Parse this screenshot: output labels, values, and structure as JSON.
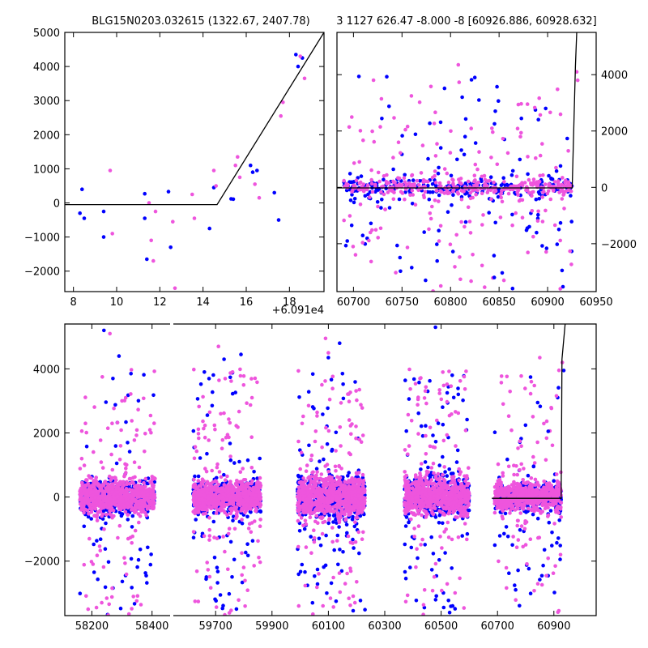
{
  "colors": {
    "blue": "#0000ff",
    "magenta": "#ee55dd",
    "model": "#000000"
  },
  "chart_data": [
    {
      "id": "zoom-left",
      "type": "scatter",
      "title": "BLG15N0203.032615 (1322.67, 2407.78)",
      "xlabel": "",
      "offset_label": "+6.091e4",
      "xlim": [
        7.6,
        19.6
      ],
      "ylim": [
        -2600,
        5000
      ],
      "xticks": [
        8,
        10,
        12,
        14,
        16,
        18
      ],
      "xtick_labels": [
        "8",
        "10",
        "12",
        "14",
        "16",
        "18"
      ],
      "yticks": [
        -2000,
        -1000,
        0,
        1000,
        2000,
        3000,
        4000,
        5000
      ],
      "ytick_labels": [
        "−2000",
        "−1000",
        "0",
        "1000",
        "2000",
        "3000",
        "4000",
        "5000"
      ],
      "series": [
        {
          "name": "blue",
          "color": "#0000ff",
          "x": [
            8.3,
            8.4,
            8.5,
            9.4,
            9.4,
            11.3,
            11.3,
            11.4,
            12.4,
            12.5,
            14.3,
            14.5,
            15.3,
            15.4,
            16.2,
            16.3,
            16.5,
            17.3,
            17.5,
            18.3,
            18.4,
            18.6
          ],
          "y": [
            -300,
            400,
            -450,
            -250,
            -1000,
            -450,
            270,
            -1650,
            330,
            -1300,
            -750,
            450,
            120,
            110,
            1100,
            900,
            950,
            300,
            -500,
            4350,
            4000,
            4250
          ]
        },
        {
          "name": "magenta",
          "color": "#ee55dd",
          "x": [
            9.7,
            9.8,
            11.5,
            11.6,
            11.7,
            11.8,
            12.6,
            12.7,
            13.5,
            13.6,
            14.5,
            14.6,
            15.5,
            15.6,
            15.7,
            16.4,
            16.6,
            17.6,
            17.7,
            18.5,
            18.7
          ],
          "y": [
            950,
            -900,
            0,
            -1100,
            -1700,
            -250,
            -550,
            -2500,
            250,
            -450,
            950,
            500,
            1100,
            1350,
            750,
            550,
            150,
            2550,
            2950,
            4300,
            3650
          ]
        }
      ],
      "model": {
        "x": [
          7.6,
          14.65,
          19.6
        ],
        "y": [
          -50,
          -50,
          5000
        ]
      }
    },
    {
      "id": "zoom-right",
      "type": "scatter",
      "title": "3 1127 626.47 -8.000 -8 [60926.886, 60928.632]",
      "xlim": [
        60683,
        60950
      ],
      "ylim": [
        -3700,
        5500
      ],
      "xticks": [
        60700,
        60750,
        60800,
        60850,
        60900,
        60950
      ],
      "xtick_labels": [
        "60700",
        "60750",
        "60800",
        "60850",
        "60900",
        "60950"
      ],
      "yticks": [
        -2000,
        0,
        2000,
        4000
      ],
      "ytick_labels": [
        "−2000",
        "0",
        "2000",
        "4000"
      ],
      "yaxis_side": "right",
      "clusters": [
        {
          "x0": 60690,
          "x1": 60926,
          "n_blue": 320,
          "n_magenta": 420,
          "core_sd": 170,
          "out_frac": 0.32
        }
      ],
      "outliers": {
        "blue": {
          "x": [
            60812,
            60825,
            60898,
            60815,
            60790,
            60760,
            60845
          ],
          "y": [
            3200,
            3900,
            2800,
            1800,
            1400,
            -2850,
            -3200
          ]
        },
        "magenta": {
          "x": [
            60808,
            60872,
            60790,
            60913,
            60855,
            60930,
            60931
          ],
          "y": [
            4350,
            1800,
            -3500,
            -3600,
            -3300,
            4100,
            3800
          ]
        }
      },
      "model": {
        "x": [
          60683,
          60925.3,
          60928.6,
          60930
        ],
        "y": [
          -20,
          -20,
          4300,
          5500
        ]
      }
    },
    {
      "id": "full-lightcurve",
      "type": "scatter",
      "title": "",
      "broken_axis": true,
      "segments": [
        {
          "xlim": [
            58110,
            58460
          ],
          "xticks": [
            58200,
            58400
          ],
          "xtick_labels": [
            "58200",
            "58400"
          ]
        },
        {
          "xlim": [
            59550,
            61050
          ],
          "xticks": [
            59700,
            59900,
            60100,
            60300,
            60500,
            60700,
            60900
          ],
          "xtick_labels": [
            "59700",
            "59900",
            "60100",
            "60300",
            "60500",
            "60700",
            "60900"
          ]
        }
      ],
      "ylim": [
        -3700,
        5400
      ],
      "yticks": [
        -2000,
        0,
        2000,
        4000
      ],
      "ytick_labels": [
        "−2000",
        "0",
        "2000",
        "4000"
      ],
      "clusters": [
        {
          "seg": 0,
          "x0": 58160,
          "x1": 58410,
          "n_blue": 550,
          "n_magenta": 850,
          "core_sd": 240,
          "out_frac": 0.13
        },
        {
          "seg": 1,
          "x0": 59620,
          "x1": 59860,
          "n_blue": 520,
          "n_magenta": 760,
          "core_sd": 240,
          "out_frac": 0.15
        },
        {
          "seg": 1,
          "x0": 59990,
          "x1": 60230,
          "n_blue": 600,
          "n_magenta": 850,
          "core_sd": 300,
          "out_frac": 0.17
        },
        {
          "seg": 1,
          "x0": 60370,
          "x1": 60600,
          "n_blue": 520,
          "n_magenta": 760,
          "core_sd": 280,
          "out_frac": 0.16
        },
        {
          "seg": 1,
          "x0": 60690,
          "x1": 60926,
          "n_blue": 420,
          "n_magenta": 620,
          "core_sd": 200,
          "out_frac": 0.16
        }
      ],
      "outliers": {
        "blue": {
          "x": [
            58240,
            58290,
            58270,
            58330,
            59790,
            59730,
            59660,
            60100,
            60140,
            60150,
            60480,
            60490,
            60880,
            60935
          ],
          "y": [
            5200,
            4400,
            3700,
            3850,
            4450,
            4300,
            3900,
            4350,
            4800,
            3850,
            5300,
            2300,
            2050,
            3950
          ]
        },
        "magenta": {
          "x": [
            58260,
            58300,
            59710,
            59760,
            60090,
            60210,
            60100,
            60850,
            60820,
            60930
          ],
          "y": [
            5100,
            3000,
            4700,
            3900,
            4950,
            3350,
            4500,
            4350,
            3600,
            4200
          ]
        }
      },
      "model": {
        "x": [
          60680,
          60926,
          60928.6,
          60940
        ],
        "y": [
          -40,
          -40,
          4300,
          5400
        ]
      }
    }
  ]
}
